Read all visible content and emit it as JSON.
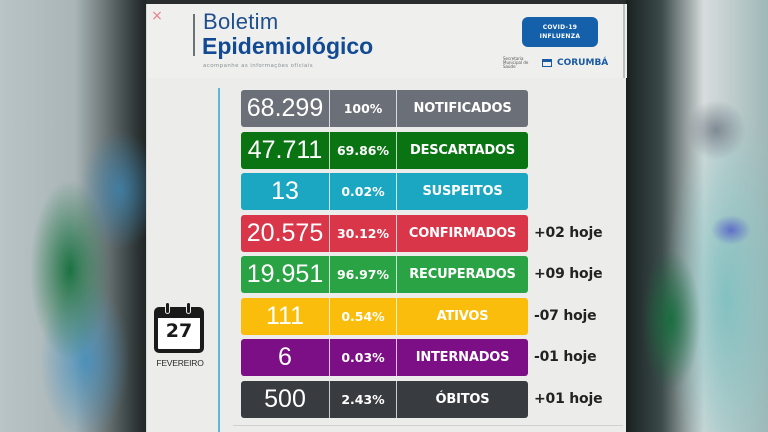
{
  "header": {
    "title_line1": "Boletim",
    "title_line2": "Epidemiológico",
    "subtitle": "acompanhe as informações oficiais",
    "badge_line1": "COVID-19",
    "badge_line2": "INFLUENZA",
    "secretaria_text": "Secretaria Municipal de Saúde",
    "city": "CORUMBÁ",
    "close_icon": "×"
  },
  "date": {
    "day": "27",
    "month": "FEVEREIRO",
    "icon": "calendar-icon"
  },
  "rows": [
    {
      "value": "68.299",
      "percent": "100%",
      "label": "NOTIFICADOS",
      "delta": "",
      "color": "#6b6f77"
    },
    {
      "value": "47.711",
      "percent": "69.86%",
      "label": "DESCARTADOS",
      "delta": "",
      "color": "#0a7413"
    },
    {
      "value": "13",
      "percent": "0.02%",
      "label": "SUSPEITOS",
      "delta": "",
      "color": "#1ba6c1"
    },
    {
      "value": "20.575",
      "percent": "30.12%",
      "label": "CONFIRMADOS",
      "delta": "+02 hoje",
      "color": "#d9364a"
    },
    {
      "value": "19.951",
      "percent": "96.97%",
      "label": "RECUPERADOS",
      "delta": "+09 hoje",
      "color": "#29a344"
    },
    {
      "value": "111",
      "percent": "0.54%",
      "label": "ATIVOS",
      "delta": "-07 hoje",
      "color": "#fbbd0c"
    },
    {
      "value": "6",
      "percent": "0.03%",
      "label": "INTERNADOS",
      "delta": "-01 hoje",
      "color": "#7d0f86"
    },
    {
      "value": "500",
      "percent": "2.43%",
      "label": "ÓBITOS",
      "delta": "+01 hoje",
      "color": "#383b40"
    }
  ]
}
